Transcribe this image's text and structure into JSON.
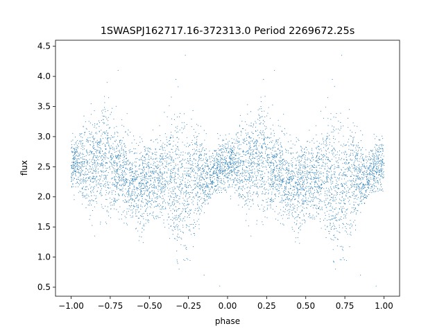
{
  "chart_data": {
    "type": "scatter",
    "title": "1SWASPJ162717.16-372313.0 Period 2269672.25s",
    "xlabel": "phase",
    "ylabel": "flux",
    "xlim": [
      -1.1,
      1.1
    ],
    "ylim": [
      0.35,
      4.6
    ],
    "xticks": [
      -1.0,
      -0.75,
      -0.5,
      -0.25,
      0.0,
      0.25,
      0.5,
      0.75,
      1.0
    ],
    "xtick_labels": [
      "−1.00",
      "−0.75",
      "−0.50",
      "−0.25",
      "0.00",
      "0.25",
      "0.50",
      "0.75",
      "1.00"
    ],
    "yticks": [
      0.5,
      1.0,
      1.5,
      2.0,
      2.5,
      3.0,
      3.5,
      4.0,
      4.5
    ],
    "ytick_labels": [
      "0.5",
      "1.0",
      "1.5",
      "2.0",
      "2.5",
      "3.0",
      "3.5",
      "4.0",
      "4.5"
    ],
    "grid": false,
    "legend": "none",
    "marker_color": "#1f77b4",
    "phase_range": [
      -1.0,
      1.0
    ],
    "flux_range": [
      0.5,
      4.35
    ],
    "period_repeats": true,
    "envelope": [
      {
        "phase": -1.0,
        "median": 2.55,
        "low": 2.15,
        "high": 2.9
      },
      {
        "phase": -0.95,
        "median": 2.55,
        "low": 2.1,
        "high": 2.95
      },
      {
        "phase": -0.9,
        "median": 2.5,
        "low": 1.85,
        "high": 3.2
      },
      {
        "phase": -0.85,
        "median": 2.55,
        "low": 1.9,
        "high": 3.3
      },
      {
        "phase": -0.8,
        "median": 2.65,
        "low": 2.0,
        "high": 3.45
      },
      {
        "phase": -0.75,
        "median": 2.6,
        "low": 1.9,
        "high": 3.45
      },
      {
        "phase": -0.7,
        "median": 2.45,
        "low": 1.95,
        "high": 3.1
      },
      {
        "phase": -0.65,
        "median": 2.35,
        "low": 1.75,
        "high": 3.05
      },
      {
        "phase": -0.6,
        "median": 2.2,
        "low": 1.7,
        "high": 2.8
      },
      {
        "phase": -0.55,
        "median": 2.15,
        "low": 1.55,
        "high": 2.85
      },
      {
        "phase": -0.5,
        "median": 2.3,
        "low": 1.8,
        "high": 2.9
      },
      {
        "phase": -0.45,
        "median": 2.3,
        "low": 1.7,
        "high": 3.0
      },
      {
        "phase": -0.4,
        "median": 2.35,
        "low": 1.7,
        "high": 3.1
      },
      {
        "phase": -0.35,
        "median": 2.3,
        "low": 1.5,
        "high": 3.35
      },
      {
        "phase": -0.3,
        "median": 2.2,
        "low": 1.3,
        "high": 3.4
      },
      {
        "phase": -0.25,
        "median": 2.15,
        "low": 1.35,
        "high": 3.3
      },
      {
        "phase": -0.2,
        "median": 2.35,
        "low": 1.6,
        "high": 3.3
      },
      {
        "phase": -0.15,
        "median": 2.35,
        "low": 1.8,
        "high": 2.9
      },
      {
        "phase": -0.1,
        "median": 2.35,
        "low": 2.0,
        "high": 2.7
      },
      {
        "phase": -0.05,
        "median": 2.5,
        "low": 2.05,
        "high": 2.9
      },
      {
        "phase": 0.0,
        "median": 2.55,
        "low": 2.15,
        "high": 2.9
      },
      {
        "phase": 0.05,
        "median": 2.55,
        "low": 2.1,
        "high": 2.95
      },
      {
        "phase": 0.1,
        "median": 2.5,
        "low": 1.85,
        "high": 3.2
      },
      {
        "phase": 0.15,
        "median": 2.55,
        "low": 1.9,
        "high": 3.3
      },
      {
        "phase": 0.2,
        "median": 2.65,
        "low": 2.0,
        "high": 3.45
      },
      {
        "phase": 0.25,
        "median": 2.6,
        "low": 1.9,
        "high": 3.45
      },
      {
        "phase": 0.3,
        "median": 2.45,
        "low": 1.95,
        "high": 3.1
      },
      {
        "phase": 0.35,
        "median": 2.35,
        "low": 1.75,
        "high": 3.05
      },
      {
        "phase": 0.4,
        "median": 2.2,
        "low": 1.7,
        "high": 2.8
      },
      {
        "phase": 0.45,
        "median": 2.15,
        "low": 1.55,
        "high": 2.85
      },
      {
        "phase": 0.5,
        "median": 2.3,
        "low": 1.8,
        "high": 2.9
      },
      {
        "phase": 0.55,
        "median": 2.3,
        "low": 1.7,
        "high": 3.0
      },
      {
        "phase": 0.6,
        "median": 2.35,
        "low": 1.7,
        "high": 3.1
      },
      {
        "phase": 0.65,
        "median": 2.3,
        "low": 1.5,
        "high": 3.35
      },
      {
        "phase": 0.7,
        "median": 2.2,
        "low": 1.3,
        "high": 3.4
      },
      {
        "phase": 0.75,
        "median": 2.15,
        "low": 1.35,
        "high": 3.3
      },
      {
        "phase": 0.8,
        "median": 2.35,
        "low": 1.6,
        "high": 3.3
      },
      {
        "phase": 0.85,
        "median": 2.35,
        "low": 1.8,
        "high": 2.9
      },
      {
        "phase": 0.9,
        "median": 2.35,
        "low": 2.0,
        "high": 2.7
      },
      {
        "phase": 0.95,
        "median": 2.5,
        "low": 2.05,
        "high": 2.9
      },
      {
        "phase": 1.0,
        "median": 2.55,
        "low": 2.15,
        "high": 2.9
      }
    ],
    "outliers": [
      {
        "x": -0.27,
        "y": 4.35
      },
      {
        "x": 0.73,
        "y": 4.35
      },
      {
        "x": -0.7,
        "y": 4.1
      },
      {
        "x": 0.3,
        "y": 4.1
      },
      {
        "x": -0.31,
        "y": 0.8
      },
      {
        "x": 0.69,
        "y": 0.8
      },
      {
        "x": -0.05,
        "y": 0.52
      },
      {
        "x": 0.95,
        "y": 0.52
      },
      {
        "x": -0.77,
        "y": 3.9
      },
      {
        "x": 0.23,
        "y": 3.95
      },
      {
        "x": -0.33,
        "y": 3.95
      },
      {
        "x": 0.67,
        "y": 3.95
      },
      {
        "x": -0.15,
        "y": 0.7
      },
      {
        "x": 0.85,
        "y": 0.7
      },
      {
        "x": -0.85,
        "y": 1.35
      },
      {
        "x": 0.15,
        "y": 1.35
      }
    ]
  }
}
